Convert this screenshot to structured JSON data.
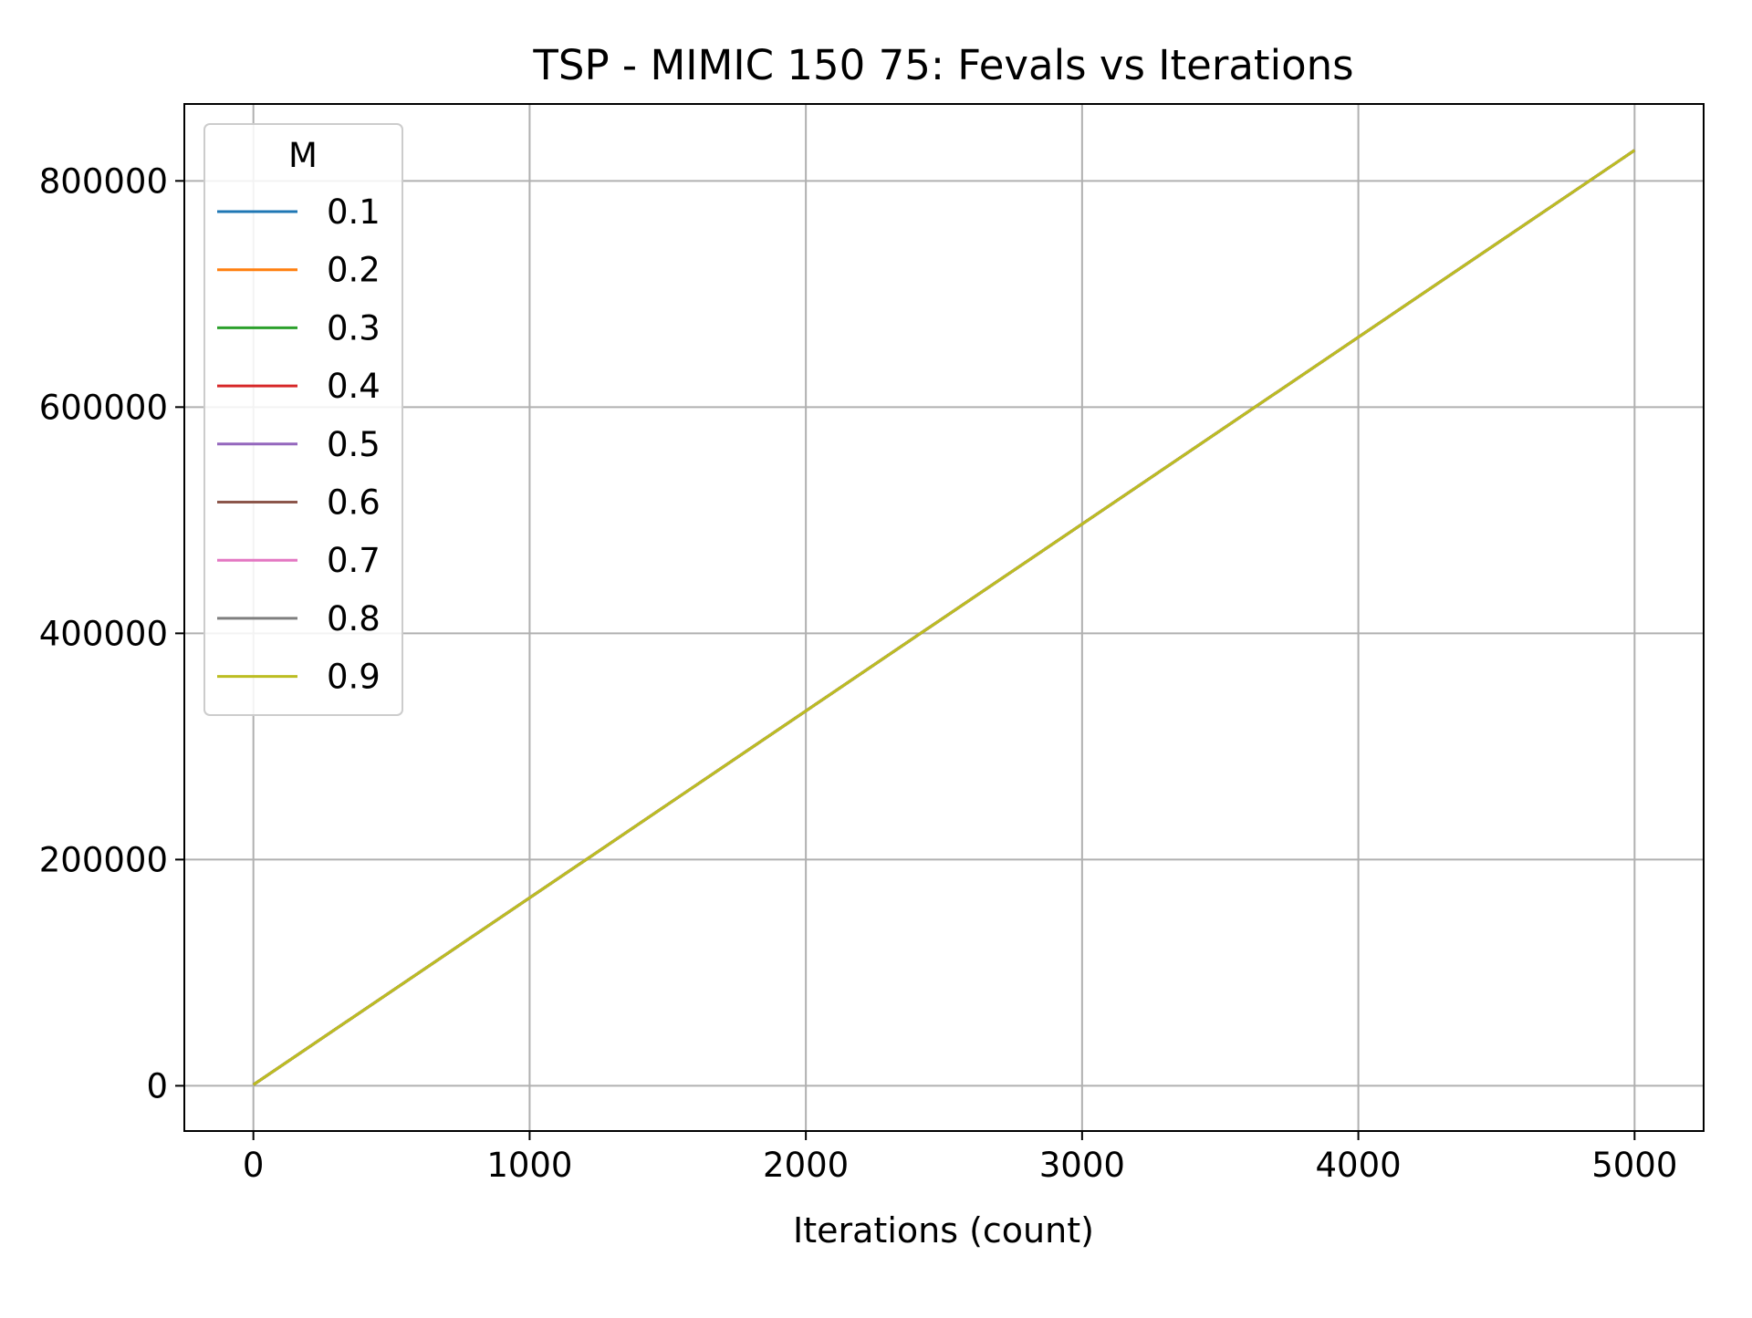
{
  "chart_data": {
    "type": "line",
    "title": "TSP - MIMIC 150 75: Fevals vs Iterations",
    "xlabel": "Iterations (count)",
    "ylabel": "",
    "xlim": [
      -250,
      5250
    ],
    "ylim": [
      -40000,
      868000
    ],
    "xticks": [
      0,
      1000,
      2000,
      3000,
      4000,
      5000
    ],
    "yticks": [
      0,
      200000,
      400000,
      600000,
      800000
    ],
    "xtick_labels": [
      "0",
      "1000",
      "2000",
      "3000",
      "4000",
      "5000"
    ],
    "ytick_labels": [
      "0",
      "200000",
      "400000",
      "600000",
      "800000"
    ],
    "grid": true,
    "legend": {
      "title": "M",
      "placement": "upper-left"
    },
    "series": [
      {
        "name": "0.1",
        "color": "#1f77b4",
        "x": [
          0,
          5000
        ],
        "y": [
          1000,
          827000
        ]
      },
      {
        "name": "0.2",
        "color": "#ff7f0e",
        "x": [
          0,
          5000
        ],
        "y": [
          1000,
          827000
        ]
      },
      {
        "name": "0.3",
        "color": "#2ca02c",
        "x": [
          0,
          5000
        ],
        "y": [
          1000,
          827000
        ]
      },
      {
        "name": "0.4",
        "color": "#d62728",
        "x": [
          0,
          5000
        ],
        "y": [
          1000,
          827000
        ]
      },
      {
        "name": "0.5",
        "color": "#9467bd",
        "x": [
          0,
          5000
        ],
        "y": [
          1000,
          827000
        ]
      },
      {
        "name": "0.6",
        "color": "#8c564b",
        "x": [
          0,
          5000
        ],
        "y": [
          1000,
          827000
        ]
      },
      {
        "name": "0.7",
        "color": "#e377c2",
        "x": [
          0,
          5000
        ],
        "y": [
          1000,
          827000
        ]
      },
      {
        "name": "0.8",
        "color": "#7f7f7f",
        "x": [
          0,
          5000
        ],
        "y": [
          1000,
          827000
        ]
      },
      {
        "name": "0.9",
        "color": "#bcbd22",
        "x": [
          0,
          5000
        ],
        "y": [
          1000,
          827000
        ]
      }
    ]
  }
}
